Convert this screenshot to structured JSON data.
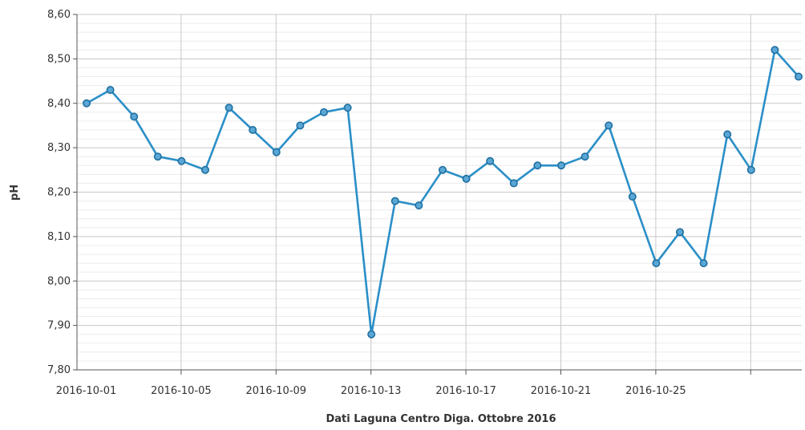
{
  "chart_data": {
    "type": "line",
    "title": "",
    "xlabel": "Dati Laguna Centro Diga. Ottobre 2016",
    "ylabel": "pH",
    "ylim": [
      7.8,
      8.6
    ],
    "y_ticks": [
      "7,80",
      "7,90",
      "8,00",
      "8,10",
      "8,20",
      "8,30",
      "8,40",
      "8,50",
      "8,60"
    ],
    "x_tick_labels": [
      "2016-10-01",
      "2016-10-05",
      "2016-10-09",
      "2016-10-13",
      "2016-10-17",
      "2016-10-21",
      "2016-10-25"
    ],
    "grid": true,
    "series_color": "#2b8fc7",
    "series": [
      {
        "x": [
          "2016-10-01",
          "2016-10-02",
          "2016-10-03",
          "2016-10-04",
          "2016-10-05",
          "2016-10-06",
          "2016-10-07",
          "2016-10-08",
          "2016-10-09",
          "2016-10-10",
          "2016-10-11",
          "2016-10-12",
          "2016-10-13",
          "2016-10-14",
          "2016-10-15",
          "2016-10-16",
          "2016-10-17",
          "2016-10-18",
          "2016-10-19",
          "2016-10-20",
          "2016-10-21",
          "2016-10-22",
          "2016-10-23",
          "2016-10-24",
          "2016-10-25",
          "2016-10-26",
          "2016-10-27",
          "2016-10-28",
          "2016-10-29",
          "2016-10-30",
          "2016-10-31"
        ],
        "values": [
          8.4,
          8.43,
          8.37,
          8.28,
          8.27,
          8.25,
          8.39,
          8.34,
          8.29,
          8.35,
          8.38,
          8.39,
          7.88,
          8.18,
          8.17,
          8.25,
          8.23,
          8.27,
          8.22,
          8.26,
          8.26,
          8.28,
          8.35,
          8.19,
          8.04,
          8.11,
          8.04,
          8.33,
          8.25,
          8.52,
          8.46
        ]
      }
    ]
  }
}
